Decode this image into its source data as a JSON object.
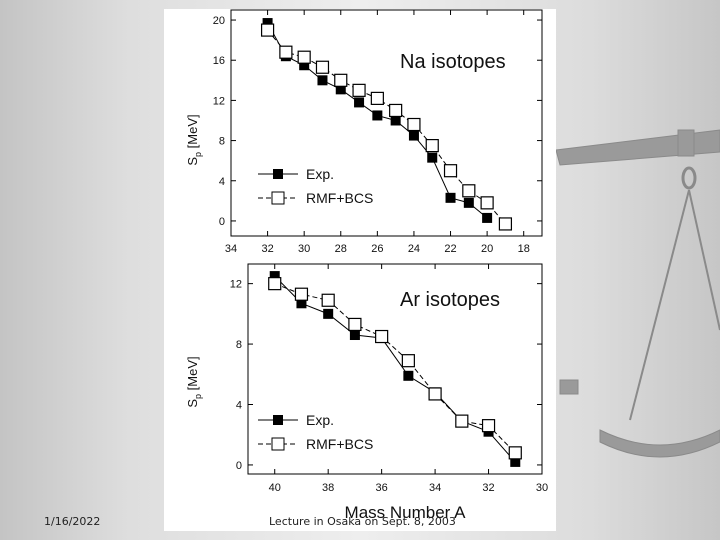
{
  "footer": {
    "date": "1/16/2022",
    "lecture": "Lecture in Osaka on Sept. 8, 2003"
  },
  "chart_data": [
    {
      "type": "line",
      "title": "Na isotopes",
      "xlabel": "",
      "ylabel": "Sp [MeV]",
      "ylabel_main": "S",
      "ylabel_sub": "p",
      "ylabel_rest": " [MeV]",
      "xlim": [
        34,
        17
      ],
      "ylim": [
        -1.5,
        21
      ],
      "xticks": [
        "34",
        "32",
        "30",
        "28",
        "26",
        "24",
        "22",
        "20",
        "18"
      ],
      "yticks": [
        "0",
        "4",
        "8",
        "12",
        "16",
        "20"
      ],
      "legend": {
        "position": "bottom-left"
      },
      "series": [
        {
          "name": "Exp.",
          "marker": "filled-square",
          "x": [
            32,
            31,
            30,
            29,
            28,
            27,
            26,
            25,
            24,
            23,
            22,
            21,
            20
          ],
          "y": [
            19.7,
            16.4,
            15.5,
            14.0,
            13.1,
            11.8,
            10.5,
            10.0,
            8.5,
            6.3,
            2.3,
            1.8,
            0.3
          ]
        },
        {
          "name": "RMF+BCS",
          "marker": "open-square",
          "x": [
            32,
            31,
            30,
            29,
            28,
            27,
            26,
            25,
            24,
            23,
            22,
            21,
            20,
            19
          ],
          "y": [
            19.0,
            16.8,
            16.3,
            15.3,
            14.0,
            13.0,
            12.2,
            11.0,
            9.6,
            7.5,
            5.0,
            3.0,
            1.8,
            -0.3
          ]
        }
      ]
    },
    {
      "type": "line",
      "title": "Ar isotopes",
      "xlabel": "Mass Number A",
      "ylabel": "Sp [MeV]",
      "ylabel_main": "S",
      "ylabel_sub": "p",
      "ylabel_rest": " [MeV]",
      "xlim": [
        41,
        30
      ],
      "ylim": [
        -0.6,
        13.3
      ],
      "xticks": [
        "40",
        "38",
        "36",
        "34",
        "32",
        "30"
      ],
      "yticks": [
        "0",
        "4",
        "8",
        "12"
      ],
      "legend": {
        "position": "bottom-left"
      },
      "series": [
        {
          "name": "Exp.",
          "marker": "filled-square",
          "x": [
            40,
            39,
            38,
            37,
            36,
            35,
            34,
            33,
            32,
            31
          ],
          "y": [
            12.5,
            10.7,
            10.0,
            8.6,
            8.4,
            5.9,
            4.8,
            2.9,
            2.2,
            0.2
          ]
        },
        {
          "name": "RMF+BCS",
          "marker": "open-square",
          "x": [
            40,
            39,
            38,
            37,
            36,
            35,
            34,
            33,
            32,
            31
          ],
          "y": [
            12.0,
            11.3,
            10.9,
            9.3,
            8.5,
            6.9,
            4.7,
            2.9,
            2.6,
            0.8
          ]
        }
      ]
    }
  ]
}
